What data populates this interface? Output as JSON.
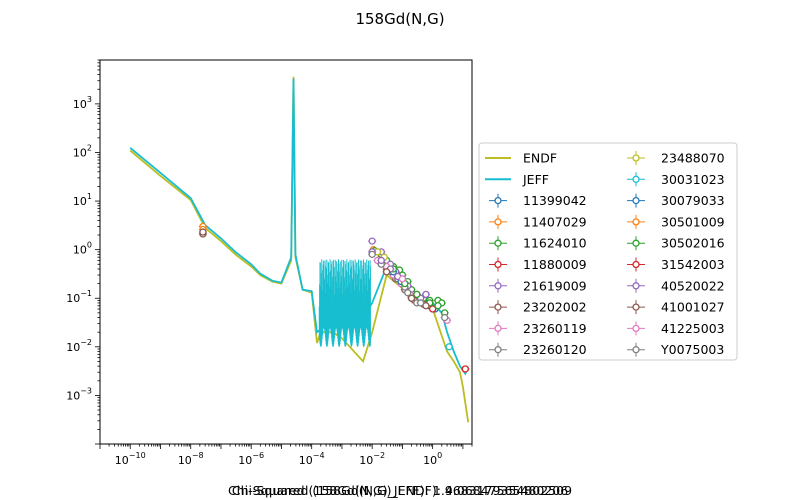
{
  "chart_data": {
    "type": "line",
    "title": "158Gd(N,G)",
    "xscale": "log",
    "yscale": "log",
    "xlim": [
      1e-11,
      20.0
    ],
    "ylim": [
      0.0001,
      8000.0
    ],
    "xticks": [
      {
        "value": 1e-10,
        "base": "10",
        "exp": "−10"
      },
      {
        "value": 1e-08,
        "base": "10",
        "exp": "−8"
      },
      {
        "value": 1e-06,
        "base": "10",
        "exp": "−6"
      },
      {
        "value": 0.0001,
        "base": "10",
        "exp": "−4"
      },
      {
        "value": 0.01,
        "base": "10",
        "exp": "−2"
      },
      {
        "value": 1,
        "base": "10",
        "exp": "0"
      }
    ],
    "yticks": [
      {
        "value": 0.001,
        "base": "10",
        "exp": "−3"
      },
      {
        "value": 0.01,
        "base": "10",
        "exp": "−2"
      },
      {
        "value": 0.1,
        "base": "10",
        "exp": "−1"
      },
      {
        "value": 1,
        "base": "10",
        "exp": "0"
      },
      {
        "value": 10,
        "base": "10",
        "exp": "1"
      },
      {
        "value": 100,
        "base": "10",
        "exp": "2"
      },
      {
        "value": 1000,
        "base": "10",
        "exp": "3"
      }
    ],
    "legend_position": "right, outside plot",
    "series": [
      {
        "name": "ENDF",
        "kind": "line",
        "color": "#bcbd22",
        "points": [
          [
            1e-10,
            110
          ],
          [
            1e-09,
            33
          ],
          [
            1e-08,
            10.5
          ],
          [
            3e-08,
            2.8
          ],
          [
            1e-07,
            1.5
          ],
          [
            3e-07,
            0.8
          ],
          [
            1e-06,
            0.45
          ],
          [
            2e-06,
            0.3
          ],
          [
            5e-06,
            0.22
          ],
          [
            1e-05,
            0.2
          ],
          [
            2.1e-05,
            0.6
          ],
          [
            2.5e-05,
            3600
          ],
          [
            2.9e-05,
            0.7
          ],
          [
            5e-05,
            0.15
          ],
          [
            0.0001,
            0.13
          ],
          [
            0.00015,
            0.012
          ],
          [
            0.0002,
            0.02
          ],
          [
            0.0005,
            0.02
          ],
          [
            0.001,
            0.015
          ],
          [
            0.005,
            0.005
          ],
          [
            0.01,
            0.02
          ],
          [
            0.03,
            0.3
          ],
          [
            0.1,
            0.16
          ],
          [
            1,
            0.06
          ],
          [
            3,
            0.008
          ],
          [
            5,
            0.005
          ],
          [
            8,
            0.003
          ],
          [
            10,
            0.0015
          ],
          [
            12,
            0.0007
          ],
          [
            15,
            0.00028
          ]
        ]
      },
      {
        "name": "JEFF",
        "kind": "line",
        "color": "#17becf",
        "points": [
          [
            1e-10,
            125
          ],
          [
            1e-09,
            38
          ],
          [
            1e-08,
            11.5
          ],
          [
            3e-08,
            3.2
          ],
          [
            1e-07,
            1.7
          ],
          [
            3e-07,
            0.9
          ],
          [
            1e-06,
            0.5
          ],
          [
            2e-06,
            0.32
          ],
          [
            5e-06,
            0.23
          ],
          [
            1e-05,
            0.21
          ],
          [
            2.1e-05,
            0.7
          ],
          [
            2.5e-05,
            3300
          ],
          [
            2.9e-05,
            0.8
          ],
          [
            5e-05,
            0.15
          ],
          [
            0.0001,
            0.14
          ],
          [
            0.00015,
            0.02
          ],
          [
            0.0003,
            0.028
          ],
          [
            0.001,
            0.03
          ],
          [
            0.005,
            0.04
          ],
          [
            0.01,
            0.08
          ],
          [
            0.03,
            0.45
          ],
          [
            0.1,
            0.2
          ],
          [
            0.5,
            0.1
          ],
          [
            1,
            0.08
          ],
          [
            2,
            0.05
          ],
          [
            3,
            0.02
          ],
          [
            5,
            0.008
          ],
          [
            8,
            0.004
          ],
          [
            12,
            0.0028
          ],
          [
            15,
            0.0038
          ]
        ]
      },
      {
        "name": "11399042",
        "kind": "points",
        "color": "#1f77b4",
        "points": [
          [
            0.3,
            0.09
          ],
          [
            0.5,
            0.08
          ],
          [
            0.8,
            0.07
          ],
          [
            1.2,
            0.06
          ]
        ]
      },
      {
        "name": "11407029",
        "kind": "points",
        "color": "#ff7f0e",
        "points": [
          [
            2.53e-08,
            3.0
          ],
          [
            0.011,
            1.0
          ],
          [
            0.02,
            0.7
          ]
        ]
      },
      {
        "name": "11624010",
        "kind": "points",
        "color": "#2ca02c",
        "points": [
          [
            0.012,
            0.95
          ],
          [
            0.02,
            0.8
          ],
          [
            0.03,
            0.6
          ],
          [
            0.05,
            0.45
          ],
          [
            0.08,
            0.38
          ],
          [
            0.1,
            0.3
          ],
          [
            0.15,
            0.22
          ],
          [
            0.2,
            0.15
          ],
          [
            0.3,
            0.12
          ],
          [
            0.5,
            0.1
          ],
          [
            0.8,
            0.09
          ],
          [
            1.5,
            0.09
          ],
          [
            2.0,
            0.08
          ]
        ]
      },
      {
        "name": "11880009",
        "kind": "points",
        "color": "#d62728",
        "points": [
          [
            1.0,
            0.06
          ],
          [
            12.0,
            0.0035
          ]
        ]
      },
      {
        "name": "21619009",
        "kind": "points",
        "color": "#9467bd",
        "points": [
          [
            0.01,
            1.5
          ],
          [
            0.02,
            0.9
          ],
          [
            0.04,
            0.5
          ],
          [
            0.06,
            0.35
          ],
          [
            0.1,
            0.25
          ],
          [
            0.15,
            0.18
          ],
          [
            0.25,
            0.12
          ],
          [
            0.4,
            0.1
          ],
          [
            0.6,
            0.12
          ]
        ]
      },
      {
        "name": "23202002",
        "kind": "points",
        "color": "#8c564b",
        "points": [
          [
            2.53e-08,
            2.1
          ],
          [
            0.03,
            0.4
          ],
          [
            0.06,
            0.25
          ],
          [
            0.12,
            0.15
          ],
          [
            0.25,
            0.09
          ],
          [
            0.5,
            0.075
          ]
        ]
      },
      {
        "name": "23260119",
        "kind": "points",
        "color": "#e377c2",
        "points": [
          [
            0.015,
            0.6
          ],
          [
            0.03,
            0.45
          ],
          [
            0.05,
            0.3
          ],
          [
            0.09,
            0.2
          ],
          [
            0.18,
            0.12
          ]
        ]
      },
      {
        "name": "23260120",
        "kind": "points",
        "color": "#7f7f7f",
        "points": [
          [
            0.02,
            0.5
          ],
          [
            0.04,
            0.35
          ],
          [
            0.07,
            0.25
          ],
          [
            0.12,
            0.17
          ],
          [
            0.2,
            0.1
          ],
          [
            0.3,
            0.08
          ]
        ]
      },
      {
        "name": "23488070",
        "kind": "points",
        "color": "#bcbd22",
        "points": [
          [
            0.015,
            0.9
          ],
          [
            0.025,
            0.7
          ]
        ]
      },
      {
        "name": "30031023",
        "kind": "points",
        "color": "#17becf",
        "points": [
          [
            3.5,
            0.01
          ]
        ]
      },
      {
        "name": "30079033",
        "kind": "points",
        "color": "#1f77b4",
        "points": [
          [
            0.05,
            0.35
          ],
          [
            0.09,
            0.22
          ]
        ]
      },
      {
        "name": "30501009",
        "kind": "points",
        "color": "#ff7f0e",
        "points": [
          [
            2.53e-08,
            2.6
          ]
        ]
      },
      {
        "name": "30502016",
        "kind": "points",
        "color": "#2ca02c",
        "points": [
          [
            0.05,
            0.4
          ],
          [
            0.12,
            0.2
          ],
          [
            0.3,
            0.12
          ],
          [
            0.8,
            0.08
          ],
          [
            1.5,
            0.07
          ],
          [
            2.5,
            0.05
          ]
        ]
      },
      {
        "name": "31542003",
        "kind": "points",
        "color": "#d62728",
        "points": [
          [
            12.0,
            0.0035
          ]
        ]
      },
      {
        "name": "40520022",
        "kind": "points",
        "color": "#9467bd",
        "points": [
          [
            0.01,
            0.9
          ],
          [
            0.02,
            0.6
          ],
          [
            0.04,
            0.4
          ],
          [
            0.07,
            0.28
          ]
        ]
      },
      {
        "name": "41001027",
        "kind": "points",
        "color": "#8c564b",
        "points": [
          [
            2.53e-08,
            2.3
          ],
          [
            0.03,
            0.35
          ],
          [
            0.2,
            0.1
          ],
          [
            0.6,
            0.07
          ]
        ]
      },
      {
        "name": "41225003",
        "kind": "points",
        "color": "#e377c2",
        "points": [
          [
            3.0,
            0.035
          ],
          [
            0.1,
            0.25
          ]
        ]
      },
      {
        "name": "Y0075003",
        "kind": "points",
        "color": "#7f7f7f",
        "points": [
          [
            0.01,
            0.8
          ],
          [
            0.15,
            0.13
          ],
          [
            0.4,
            0.08
          ],
          [
            2.5,
            0.04
          ]
        ]
      }
    ]
  },
  "footer": {
    "line1": "Chi-Squared (158Gd(N,G)_ENDF): 4.06847565480206",
    "line2": "Chi-Squared (158Gd(N,G)_JEFF): 1.9683179354802509"
  }
}
